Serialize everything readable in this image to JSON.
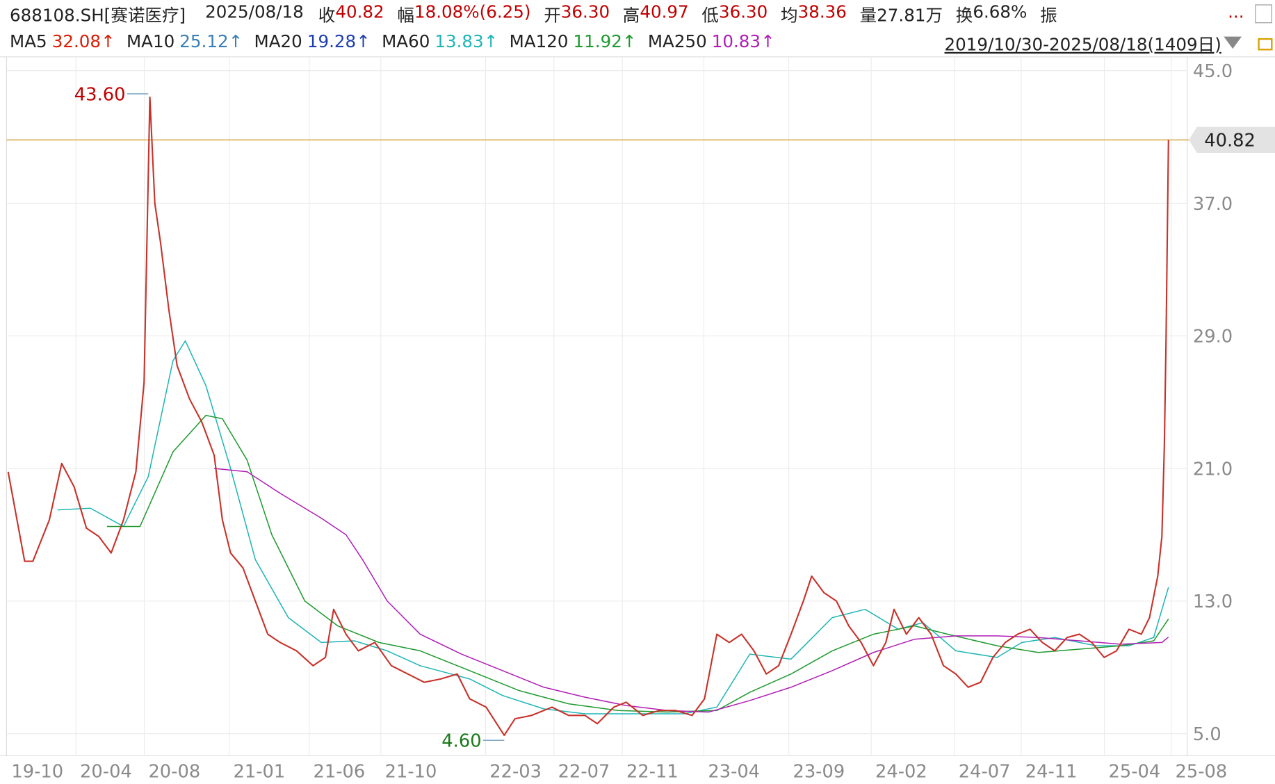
{
  "header": {
    "symbol": "688108.SH[赛诺医疗]",
    "date": "2025/08/18",
    "fields": [
      {
        "label": "收",
        "value": "40.82",
        "color": "#c00000"
      },
      {
        "label": "幅",
        "value": "18.08%(6.25)",
        "color": "#c00000"
      },
      {
        "label": "开",
        "value": "36.30",
        "color": "#c00000"
      },
      {
        "label": "高",
        "value": "40.97",
        "color": "#c00000"
      },
      {
        "label": "低",
        "value": "36.30",
        "color": "#c00000"
      },
      {
        "label": "均",
        "value": "38.36",
        "color": "#c00000"
      },
      {
        "label": "量",
        "value": "27.81万",
        "color": "#222222"
      },
      {
        "label": "换",
        "value": "6.68%",
        "color": "#222222"
      },
      {
        "label": "振"
      }
    ],
    "more": "...",
    "range": "2019/10/30-2025/08/18(1409日)"
  },
  "chart_data": {
    "type": "line",
    "xlim": [
      0,
      1408
    ],
    "ylim": [
      3.68,
      45.83
    ],
    "xticks": [
      {
        "value": 0,
        "label": "19-10"
      },
      {
        "value": 102,
        "label": "20-04"
      },
      {
        "value": 185,
        "label": "20-08"
      },
      {
        "value": 288,
        "label": "21-01"
      },
      {
        "value": 385,
        "label": "21-06"
      },
      {
        "value": 472,
        "label": "21-10"
      },
      {
        "value": 599,
        "label": "22-03"
      },
      {
        "value": 682,
        "label": "22-07"
      },
      {
        "value": 765,
        "label": "22-11"
      },
      {
        "value": 864,
        "label": "23-04"
      },
      {
        "value": 967,
        "label": "23-09"
      },
      {
        "value": 1067,
        "label": "24-02"
      },
      {
        "value": 1168,
        "label": "24-07"
      },
      {
        "value": 1249,
        "label": "24-11"
      },
      {
        "value": 1350,
        "label": "25-04"
      },
      {
        "value": 1431,
        "label": "25-08"
      }
    ],
    "yticks": [
      {
        "value": 45,
        "label": "45.0"
      },
      {
        "value": 37,
        "label": "37.0"
      },
      {
        "value": 29,
        "label": "29.0"
      },
      {
        "value": 21,
        "label": "21.0"
      },
      {
        "value": 13,
        "label": "13.0"
      },
      {
        "value": 5,
        "label": "5.0"
      }
    ],
    "grid": true,
    "current_price": 40.82,
    "annotations": [
      {
        "x": 170,
        "value": 43.6,
        "label": "43.60",
        "color": "#c00000"
      },
      {
        "x": 602,
        "value": 4.6,
        "label": "4.60",
        "color": "#1a7a1a"
      }
    ],
    "price": {
      "color": "#c8322a",
      "x": [
        0,
        20,
        30,
        50,
        65,
        80,
        95,
        110,
        125,
        140,
        155,
        165,
        172,
        178,
        185,
        195,
        205,
        220,
        235,
        250,
        260,
        270,
        285,
        300,
        315,
        330,
        350,
        370,
        385,
        395,
        410,
        425,
        445,
        465,
        485,
        505,
        525,
        545,
        560,
        580,
        602,
        615,
        635,
        660,
        680,
        700,
        715,
        735,
        750,
        770,
        790,
        810,
        830,
        845,
        860,
        875,
        890,
        905,
        920,
        935,
        950,
        965,
        975,
        990,
        1005,
        1020,
        1035,
        1050,
        1065,
        1075,
        1090,
        1105,
        1120,
        1135,
        1150,
        1165,
        1180,
        1195,
        1210,
        1225,
        1240,
        1255,
        1270,
        1285,
        1300,
        1315,
        1330,
        1345,
        1360,
        1375,
        1385,
        1395,
        1400,
        1403,
        1405,
        1407,
        1408
      ],
      "values": [
        20.8,
        15.4,
        15.4,
        17.9,
        21.3,
        19.9,
        17.4,
        16.9,
        15.9,
        17.9,
        20.8,
        26.2,
        43.4,
        37.0,
        34.6,
        30.6,
        27.2,
        25.2,
        23.8,
        21.8,
        17.9,
        15.9,
        15.0,
        13.0,
        11.0,
        10.5,
        10.0,
        9.1,
        9.6,
        12.5,
        11.0,
        10.0,
        10.5,
        9.1,
        8.6,
        8.1,
        8.3,
        8.6,
        7.1,
        6.6,
        4.9,
        5.9,
        6.1,
        6.6,
        6.1,
        6.1,
        5.6,
        6.6,
        6.9,
        6.1,
        6.4,
        6.4,
        6.1,
        7.1,
        11.0,
        10.5,
        11.0,
        10.0,
        8.6,
        9.1,
        11.0,
        13.0,
        14.5,
        13.5,
        13.0,
        11.5,
        10.5,
        9.1,
        10.5,
        12.5,
        11.0,
        12.0,
        11.0,
        9.1,
        8.6,
        7.8,
        8.1,
        9.6,
        10.5,
        11.0,
        11.3,
        10.5,
        10.0,
        10.8,
        11.0,
        10.5,
        9.6,
        10.0,
        11.3,
        11.0,
        12.0,
        14.5,
        16.9,
        22.3,
        28.7,
        36.8,
        40.82
      ]
    },
    "series": [
      {
        "name": "MA5",
        "color": "#d81e06",
        "last": {
          "value": 32.08,
          "label": "32.08↑"
        }
      },
      {
        "name": "MA10",
        "color": "#3b7fb8",
        "last": {
          "value": 25.12,
          "label": "25.12↑"
        }
      },
      {
        "name": "MA20",
        "color": "#1f3fb0",
        "last": {
          "value": 19.28,
          "label": "19.28↑"
        }
      },
      {
        "name": "MA60",
        "color": "#1fb5b5",
        "last": {
          "value": 13.83,
          "label": "13.83↑"
        },
        "x": [
          60,
          100,
          140,
          170,
          200,
          215,
          240,
          270,
          300,
          340,
          380,
          420,
          460,
          500,
          560,
          600,
          650,
          700,
          760,
          820,
          860,
          900,
          950,
          1000,
          1040,
          1080,
          1110,
          1150,
          1200,
          1230,
          1270,
          1320,
          1360,
          1390,
          1408
        ],
        "values": [
          18.5,
          18.6,
          17.5,
          20.5,
          27.5,
          28.7,
          26.0,
          21.0,
          15.5,
          12.0,
          10.5,
          10.6,
          10.0,
          9.1,
          8.3,
          7.3,
          6.5,
          6.2,
          6.2,
          6.2,
          6.6,
          9.8,
          9.5,
          12.0,
          12.5,
          11.3,
          11.7,
          10.0,
          9.6,
          10.5,
          10.8,
          10.3,
          10.3,
          10.8,
          13.83
        ]
      },
      {
        "name": "MA120",
        "color": "#1f9a2f",
        "last": {
          "value": 11.92,
          "label": "11.92↑"
        },
        "x": [
          120,
          160,
          200,
          240,
          260,
          290,
          320,
          360,
          400,
          450,
          500,
          560,
          620,
          680,
          740,
          800,
          860,
          900,
          950,
          1000,
          1050,
          1100,
          1140,
          1200,
          1250,
          1300,
          1350,
          1390,
          1408
        ],
        "values": [
          17.5,
          17.5,
          22.0,
          24.2,
          24.0,
          21.5,
          17.0,
          13.0,
          11.5,
          10.5,
          10.0,
          8.8,
          7.6,
          6.8,
          6.4,
          6.3,
          6.4,
          7.5,
          8.6,
          10.0,
          11.0,
          11.5,
          11.0,
          10.3,
          9.9,
          10.1,
          10.3,
          10.6,
          11.92
        ]
      },
      {
        "name": "MA250",
        "color": "#b01fb5",
        "last": {
          "value": 10.83,
          "label": "10.83↑"
        },
        "x": [
          250,
          290,
          330,
          380,
          410,
          430,
          460,
          500,
          550,
          600,
          650,
          700,
          750,
          800,
          850,
          900,
          950,
          1000,
          1050,
          1100,
          1150,
          1200,
          1250,
          1300,
          1350,
          1400,
          1408
        ],
        "values": [
          21.0,
          20.8,
          19.5,
          18.0,
          17.0,
          15.5,
          13.0,
          11.0,
          9.8,
          8.8,
          7.8,
          7.2,
          6.7,
          6.4,
          6.3,
          7.0,
          7.8,
          8.8,
          9.9,
          10.7,
          10.9,
          10.9,
          10.8,
          10.6,
          10.4,
          10.5,
          10.83
        ]
      }
    ]
  }
}
